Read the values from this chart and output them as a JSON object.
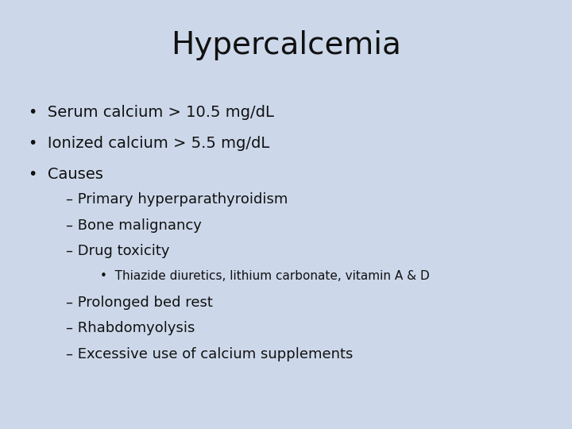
{
  "title": "Hypercalcemia",
  "background_color": "#ccd8ea",
  "text_color": "#111111",
  "title_fontsize": 28,
  "body_fontsize": 14,
  "sub_fontsize": 13,
  "subsub_fontsize": 11,
  "title_font": "DejaVu Sans",
  "body_font": "DejaVu Sans",
  "bullet1": [
    "Serum calcium > 10.5 mg/dL",
    "Ionized calcium > 5.5 mg/dL",
    "Causes"
  ],
  "sub_items": [
    "Primary hyperparathyroidism",
    "Bone malignancy",
    "Drug toxicity"
  ],
  "subsub_item": "Thiazide diuretics, lithium carbonate, vitamin A & D",
  "sub_items2": [
    "Prolonged bed rest",
    "Rhabdomyolysis",
    "Excessive use of calcium supplements"
  ]
}
